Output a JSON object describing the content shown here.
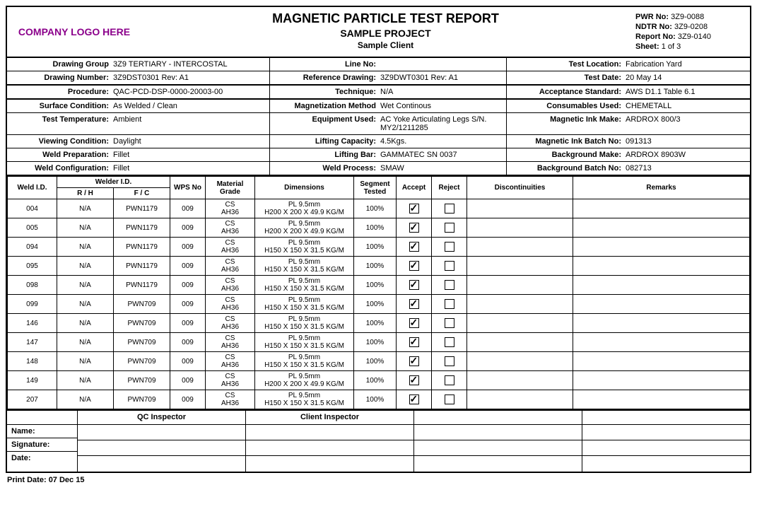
{
  "logo_text": "COMPANY LOGO HERE",
  "title": "MAGNETIC PARTICLE TEST REPORT",
  "project": "SAMPLE PROJECT",
  "client": "Sample Client",
  "meta": {
    "pwr_no_label": "PWR No:",
    "pwr_no": "3Z9-0088",
    "ndtr_no_label": "NDTR No:",
    "ndtr_no": "3Z9-0208",
    "report_no_label": "Report No:",
    "report_no": "3Z9-0140",
    "sheet_label": "Sheet:",
    "sheet": "1 of 3"
  },
  "info": [
    {
      "c1l": "Drawing Group",
      "c1v": "3Z9 TERTIARY - INTERCOSTAL",
      "c2l": "Line No:",
      "c2v": "",
      "c3l": "Test Location:",
      "c3v": "Fabrication Yard",
      "thick": false
    },
    {
      "c1l": "Drawing Number:",
      "c1v": "3Z9DST0301 Rev: A1",
      "c2l": "Reference Drawing:",
      "c2v": "3Z9DWT0301 Rev: A1",
      "c3l": "Test Date:",
      "c3v": "20 May 14",
      "thick": true
    },
    {
      "c1l": "Procedure:",
      "c1v": "QAC-PCD-DSP-0000-20003-00",
      "c2l": "Technique:",
      "c2v": "N/A",
      "c3l": "Acceptance Standard:",
      "c3v": "AWS D1.1 Table 6.1",
      "thick": true
    },
    {
      "c1l": "Surface Condition:",
      "c1v": "As Welded / Clean",
      "c2l": "Magnetization Method",
      "c2v": "Wet Continous",
      "c3l": "Consumables Used:",
      "c3v": "CHEMETALL",
      "thick": false
    },
    {
      "c1l": "Test Temperature:",
      "c1v": "Ambient",
      "c2l": "Equipment Used:",
      "c2v": "AC Yoke Articulating Legs S/N. MY2/1211285",
      "c3l": "Magnetic Ink Make:",
      "c3v": "ARDROX 800/3",
      "thick": false
    },
    {
      "c1l": "Viewing Condition:",
      "c1v": "Daylight",
      "c2l": "Lifting Capacity:",
      "c2v": "4.5Kgs.",
      "c3l": "Magnetic Ink Batch No:",
      "c3v": "091313",
      "thick": false
    },
    {
      "c1l": "Weld Preparation:",
      "c1v": "Fillet",
      "c2l": "Lifting Bar:",
      "c2v": "GAMMATEC SN 0037",
      "c3l": "Background Make:",
      "c3v": "ARDROX 8903W",
      "thick": false
    },
    {
      "c1l": "Weld Configuration:",
      "c1v": "Fillet",
      "c2l": "Weld Process:",
      "c2v": "SMAW",
      "c3l": "Background Batch No:",
      "c3v": "082713",
      "thick": true
    }
  ],
  "thead": {
    "weld_id": "Weld I.D.",
    "welder_id": "Welder I.D.",
    "rh": "R / H",
    "fc": "F / C",
    "wps": "WPS No",
    "material": "Material Grade",
    "dimensions": "Dimensions",
    "segment": "Segment Tested",
    "accept": "Accept",
    "reject": "Reject",
    "disc": "Discontinuities",
    "remarks": "Remarks"
  },
  "rows": [
    {
      "id": "004",
      "rh": "N/A",
      "fc": "PWN1179",
      "wps": "009",
      "mat1": "CS",
      "mat2": "AH36",
      "d1": "PL 9.5mm",
      "d2": "H200 X 200 X 49.9 KG/M",
      "seg": "100%",
      "acc": true,
      "rej": false
    },
    {
      "id": "005",
      "rh": "N/A",
      "fc": "PWN1179",
      "wps": "009",
      "mat1": "CS",
      "mat2": "AH36",
      "d1": "PL 9.5mm",
      "d2": "H200 X 200 X 49.9 KG/M",
      "seg": "100%",
      "acc": true,
      "rej": false
    },
    {
      "id": "094",
      "rh": "N/A",
      "fc": "PWN1179",
      "wps": "009",
      "mat1": "CS",
      "mat2": "AH36",
      "d1": "PL 9.5mm",
      "d2": "H150 X 150 X 31.5 KG/M",
      "seg": "100%",
      "acc": true,
      "rej": false
    },
    {
      "id": "095",
      "rh": "N/A",
      "fc": "PWN1179",
      "wps": "009",
      "mat1": "CS",
      "mat2": "AH36",
      "d1": "PL 9.5mm",
      "d2": "H150 X 150 X 31.5 KG/M",
      "seg": "100%",
      "acc": true,
      "rej": false
    },
    {
      "id": "098",
      "rh": "N/A",
      "fc": "PWN1179",
      "wps": "009",
      "mat1": "CS",
      "mat2": "AH36",
      "d1": "PL 9.5mm",
      "d2": "H150 X 150 X 31.5 KG/M",
      "seg": "100%",
      "acc": true,
      "rej": false
    },
    {
      "id": "099",
      "rh": "N/A",
      "fc": "PWN709",
      "wps": "009",
      "mat1": "CS",
      "mat2": "AH36",
      "d1": "PL 9.5mm",
      "d2": "H150 X 150 X 31.5 KG/M",
      "seg": "100%",
      "acc": true,
      "rej": false
    },
    {
      "id": "146",
      "rh": "N/A",
      "fc": "PWN709",
      "wps": "009",
      "mat1": "CS",
      "mat2": "AH36",
      "d1": "PL 9.5mm",
      "d2": "H150 X 150 X 31.5 KG/M",
      "seg": "100%",
      "acc": true,
      "rej": false
    },
    {
      "id": "147",
      "rh": "N/A",
      "fc": "PWN709",
      "wps": "009",
      "mat1": "CS",
      "mat2": "AH36",
      "d1": "PL 9.5mm",
      "d2": "H150 X 150 X 31.5 KG/M",
      "seg": "100%",
      "acc": true,
      "rej": false
    },
    {
      "id": "148",
      "rh": "N/A",
      "fc": "PWN709",
      "wps": "009",
      "mat1": "CS",
      "mat2": "AH36",
      "d1": "PL 9.5mm",
      "d2": "H150 X 150 X 31.5 KG/M",
      "seg": "100%",
      "acc": true,
      "rej": false
    },
    {
      "id": "149",
      "rh": "N/A",
      "fc": "PWN709",
      "wps": "009",
      "mat1": "CS",
      "mat2": "AH36",
      "d1": "PL 9.5mm",
      "d2": "H200 X 200 X 49.9 KG/M",
      "seg": "100%",
      "acc": true,
      "rej": false
    },
    {
      "id": "207",
      "rh": "N/A",
      "fc": "PWN709",
      "wps": "009",
      "mat1": "CS",
      "mat2": "AH36",
      "d1": "PL 9.5mm",
      "d2": "H150 X 150 X 31.5 KG/M",
      "seg": "100%",
      "acc": true,
      "rej": false
    }
  ],
  "sig": {
    "qc": "QC Inspector",
    "client_insp": "Client Inspector",
    "name": "Name:",
    "signature": "Signature:",
    "date": "Date:"
  },
  "print_date_label": "Print Date:",
  "print_date": "07 Dec 15"
}
